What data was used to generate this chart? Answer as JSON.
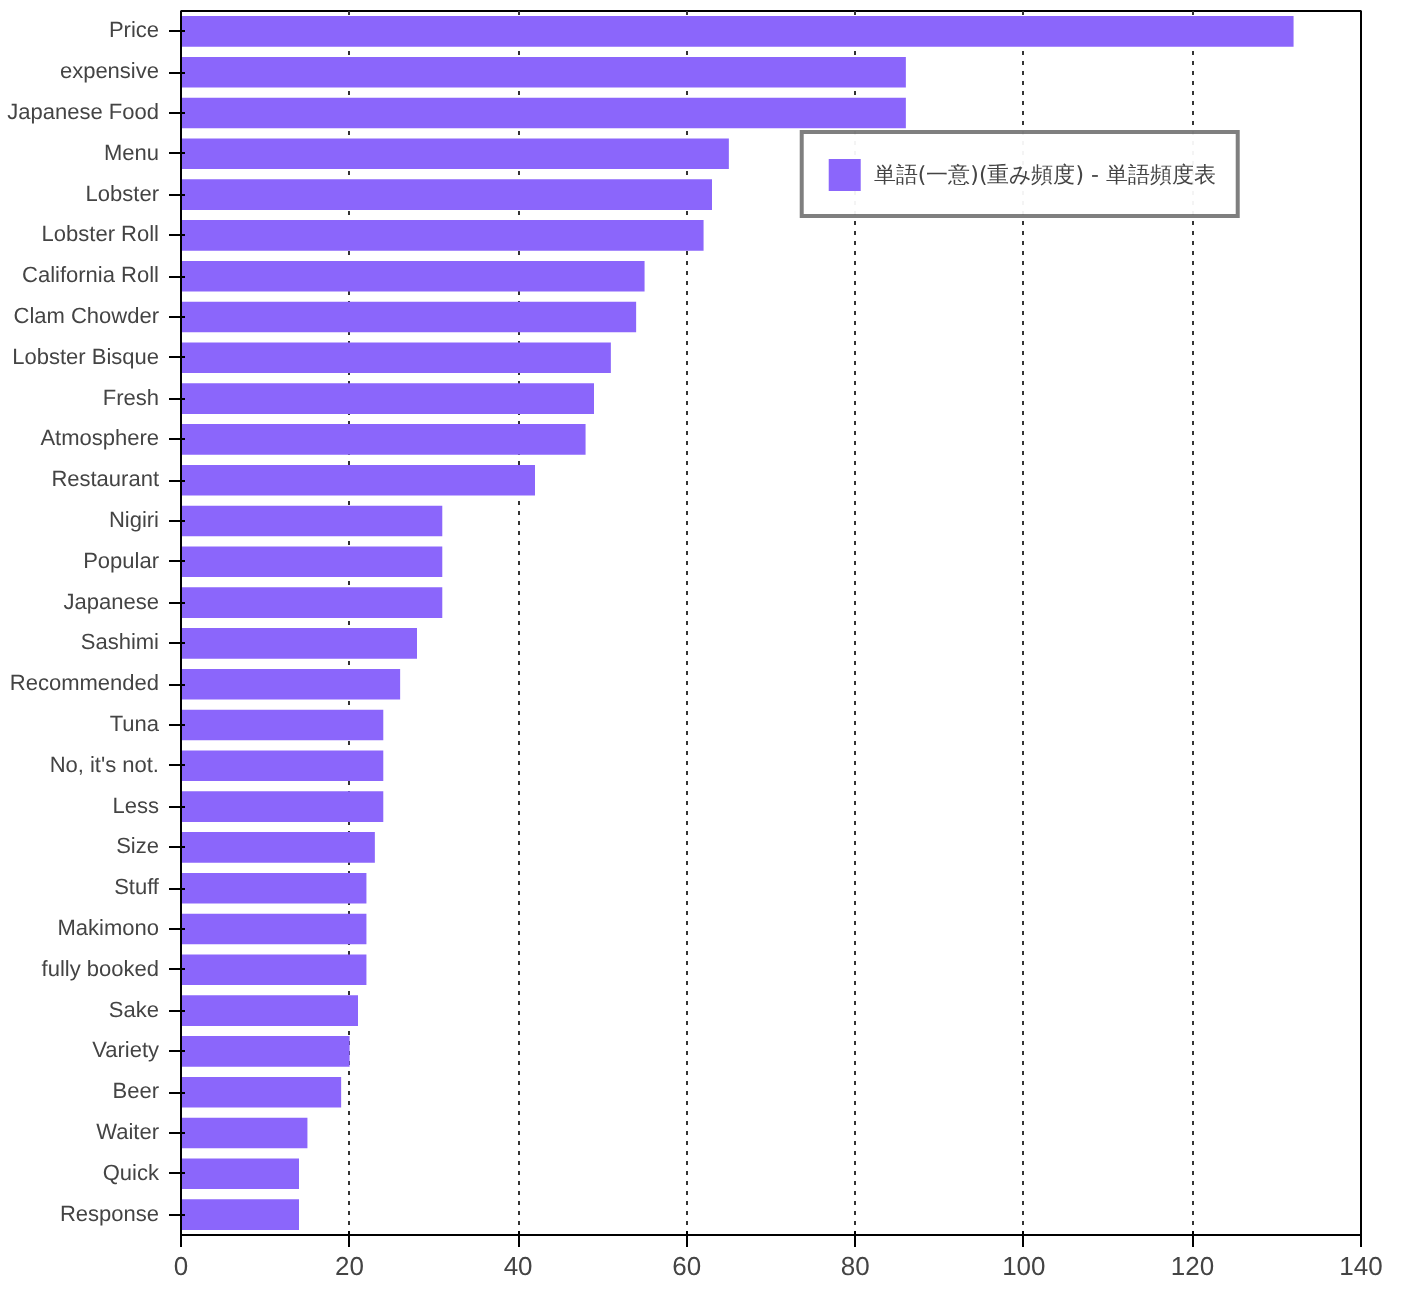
{
  "chart_data": {
    "type": "bar",
    "orientation": "horizontal",
    "categories": [
      "Price",
      "expensive",
      "Japanese Food",
      "Menu",
      "Lobster",
      "Lobster Roll",
      "California Roll",
      "Clam Chowder",
      "Lobster Bisque",
      "Fresh",
      "Atmosphere",
      "Restaurant",
      "Nigiri",
      "Popular",
      "Japanese",
      "Sashimi",
      "Recommended",
      "Tuna",
      "No, it's not.",
      "Less",
      "Size",
      "Stuff",
      "Makimono",
      "fully booked",
      "Sake",
      "Variety",
      "Beer",
      "Waiter",
      "Quick",
      "Response"
    ],
    "series": [
      {
        "name": "単語(一意)(重み頻度) - 単語頻度表",
        "color": "#8b66fb",
        "values": [
          132,
          86,
          86,
          65,
          63,
          62,
          55,
          54,
          51,
          49,
          48,
          42,
          31,
          31,
          31,
          28,
          26,
          24,
          24,
          24,
          23,
          22,
          22,
          22,
          21,
          20,
          19,
          15,
          14,
          14
        ]
      }
    ],
    "xlim": [
      0,
      140
    ],
    "xticks": [
      0,
      20,
      40,
      60,
      80,
      100,
      120,
      140
    ],
    "grid": "x",
    "legend": "top right"
  }
}
